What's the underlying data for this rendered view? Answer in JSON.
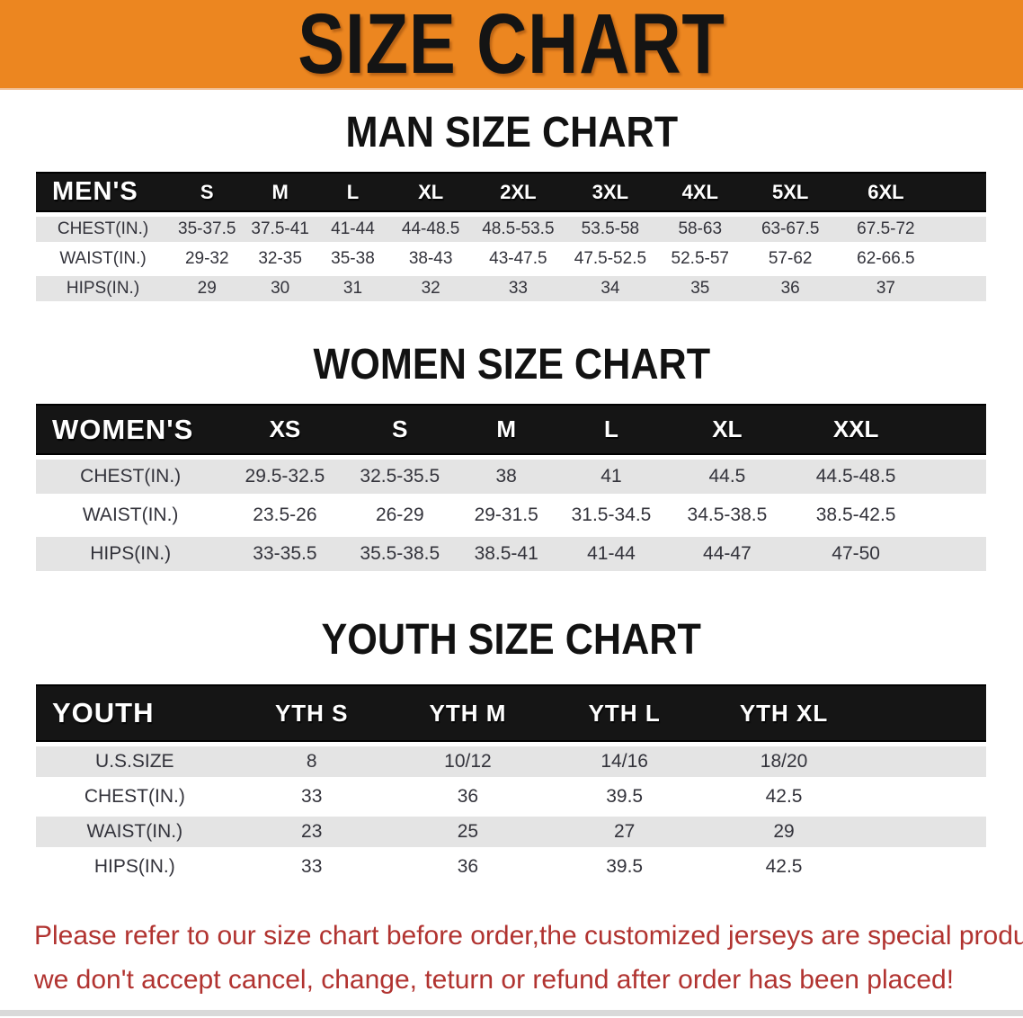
{
  "banner": {
    "title": "SIZE CHART"
  },
  "sections": [
    {
      "heading": "MAN SIZE CHART",
      "table": {
        "corner_label": "MEN'S",
        "sizes": [
          "S",
          "M",
          "L",
          "XL",
          "2XL",
          "3XL",
          "4XL",
          "5XL",
          "6XL"
        ],
        "rows": [
          {
            "label": "CHEST(IN.)",
            "values": [
              "35-37.5",
              "37.5-41",
              "41-44",
              "44-48.5",
              "48.5-53.5",
              "53.5-58",
              "58-63",
              "63-67.5",
              "67.5-72"
            ]
          },
          {
            "label": "WAIST(IN.)",
            "values": [
              "29-32",
              "32-35",
              "35-38",
              "38-43",
              "43-47.5",
              "47.5-52.5",
              "52.5-57",
              "57-62",
              "62-66.5"
            ]
          },
          {
            "label": "HIPS(IN.)",
            "values": [
              "29",
              "30",
              "31",
              "32",
              "33",
              "34",
              "35",
              "36",
              "37"
            ]
          }
        ]
      }
    },
    {
      "heading": "WOMEN SIZE CHART",
      "table": {
        "corner_label": "WOMEN'S",
        "sizes": [
          "XS",
          "S",
          "M",
          "L",
          "XL",
          "XXL"
        ],
        "rows": [
          {
            "label": "CHEST(IN.)",
            "values": [
              "29.5-32.5",
              "32.5-35.5",
              "38",
              "41",
              "44.5",
              "44.5-48.5"
            ]
          },
          {
            "label": "WAIST(IN.)",
            "values": [
              "23.5-26",
              "26-29",
              "29-31.5",
              "31.5-34.5",
              "34.5-38.5",
              "38.5-42.5"
            ]
          },
          {
            "label": "HIPS(IN.)",
            "values": [
              "33-35.5",
              "35.5-38.5",
              "38.5-41",
              "41-44",
              "44-47",
              "47-50"
            ]
          }
        ]
      }
    },
    {
      "heading": "YOUTH SIZE CHART",
      "table": {
        "corner_label": "YOUTH",
        "sizes": [
          "YTH S",
          "YTH M",
          "YTH L",
          "YTH XL"
        ],
        "rows": [
          {
            "label": "U.S.SIZE",
            "values": [
              "8",
              "10/12",
              "14/16",
              "18/20"
            ]
          },
          {
            "label": "CHEST(IN.)",
            "values": [
              "33",
              "36",
              "39.5",
              "42.5"
            ]
          },
          {
            "label": "WAIST(IN.)",
            "values": [
              "23",
              "25",
              "27",
              "29"
            ]
          },
          {
            "label": "HIPS(IN.)",
            "values": [
              "33",
              "36",
              "39.5",
              "42.5"
            ]
          }
        ]
      }
    }
  ],
  "disclaimer": {
    "line1": "Please refer to our size chart before order,the customized jerseys are special products,",
    "line2": "we don't accept cancel, change, teturn or refund after order has been placed!"
  },
  "colors": {
    "banner_bg": "#EC8620",
    "header_bg": "#151515",
    "row_gray": "#E4E4E4",
    "row_white": "#FFFFFF",
    "text_dark": "#33333B",
    "disclaimer_red": "#B13330",
    "bottom_strip": "#D9D9D9"
  }
}
